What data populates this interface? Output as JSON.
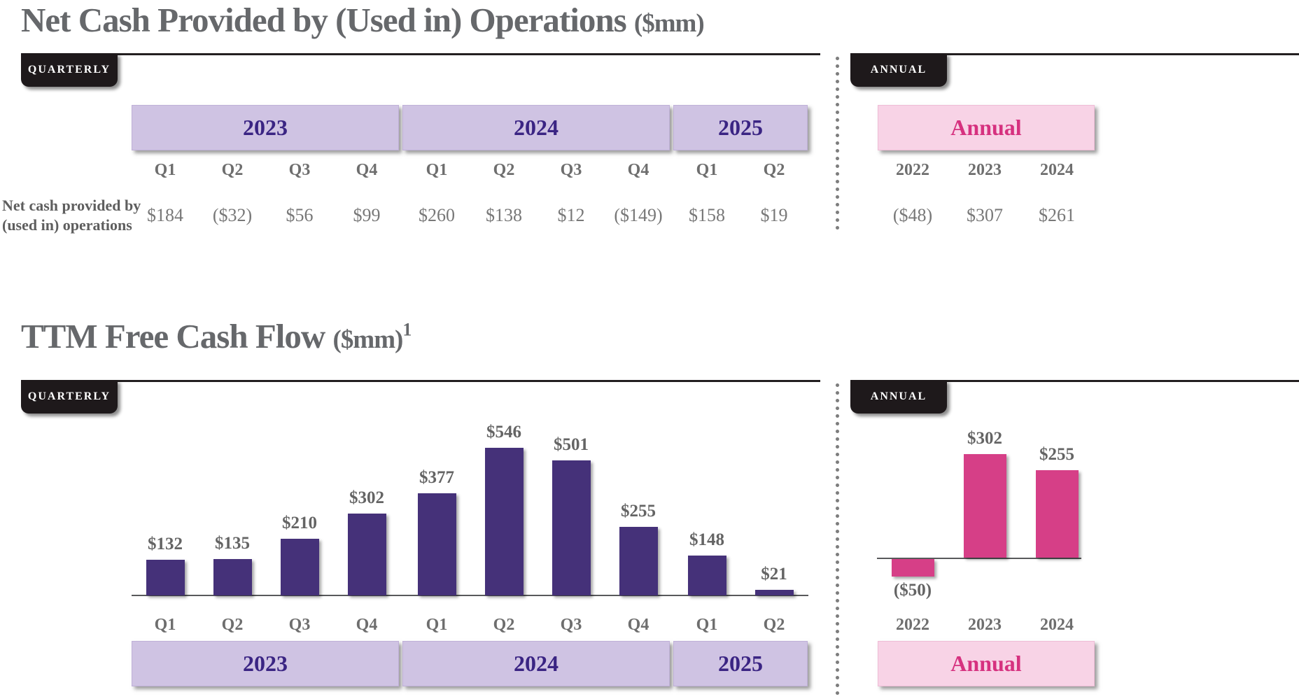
{
  "colors": {
    "purple_bar": "#453179",
    "pink_bar": "#d63f87",
    "lavender_band": "#cfc3e3",
    "pink_band": "#f8d3e6",
    "year_text": "#3a2483",
    "annual_text": "#d6317f",
    "badge_bg": "#1e191b",
    "text_gray": "#6e6e6e"
  },
  "section1": {
    "title": "Net Cash Provided by (Used in) Operations",
    "title_suffix": "($mm)",
    "quarterly_badge": "QUARTERLY",
    "annual_badge": "ANNUAL",
    "row_label_line1": "Net cash provided by",
    "row_label_line2": "(used in) operations",
    "year_bands": [
      "2023",
      "2024",
      "2025"
    ],
    "quarter_labels": [
      "Q1",
      "Q2",
      "Q3",
      "Q4",
      "Q1",
      "Q2",
      "Q3",
      "Q4",
      "Q1",
      "Q2"
    ],
    "quarter_values": [
      "$184",
      "($32)",
      "$56",
      "$99",
      "$260",
      "$138",
      "$12",
      "($149)",
      "$158",
      "$19"
    ],
    "annual": {
      "band_label": "Annual",
      "year_labels": [
        "2022",
        "2023",
        "2024"
      ],
      "values": [
        "($48)",
        "$307",
        "$261"
      ]
    }
  },
  "section2": {
    "title": "TTM Free Cash Flow",
    "title_suffix": "($mm)",
    "footnote_marker": "1",
    "quarterly_badge": "QUARTERLY",
    "annual_badge": "ANNUAL",
    "year_bands": [
      "2023",
      "2024",
      "2025"
    ],
    "annual_band_label": "Annual"
  },
  "chart_data": [
    {
      "type": "table",
      "title": "Net Cash Provided by (Used in) Operations ($mm)",
      "row_label": "Net cash provided by (used in) operations",
      "quarterly_columns": [
        "Q1 2023",
        "Q2 2023",
        "Q3 2023",
        "Q4 2023",
        "Q1 2024",
        "Q2 2024",
        "Q3 2024",
        "Q4 2024",
        "Q1 2025",
        "Q2 2025"
      ],
      "quarterly_values": [
        184,
        -32,
        56,
        99,
        260,
        138,
        12,
        -149,
        158,
        19
      ],
      "annual_columns": [
        "2022",
        "2023",
        "2024"
      ],
      "annual_values": [
        -48,
        307,
        261
      ]
    },
    {
      "type": "bar",
      "title": "TTM Free Cash Flow ($mm) - Quarterly",
      "categories": [
        "Q1",
        "Q2",
        "Q3",
        "Q4",
        "Q1",
        "Q2",
        "Q3",
        "Q4",
        "Q1",
        "Q2"
      ],
      "category_years": [
        "2023",
        "2023",
        "2023",
        "2023",
        "2024",
        "2024",
        "2024",
        "2024",
        "2025",
        "2025"
      ],
      "values": [
        132,
        135,
        210,
        302,
        377,
        546,
        501,
        255,
        148,
        21
      ],
      "data_labels": [
        "$132",
        "$135",
        "$210",
        "$302",
        "$377",
        "$546",
        "$501",
        "$255",
        "$148",
        "$21"
      ],
      "bar_color": "#453179",
      "ylim": [
        0,
        600
      ],
      "grid": false,
      "legend": "none"
    },
    {
      "type": "bar",
      "title": "TTM Free Cash Flow ($mm) - Annual",
      "categories": [
        "2022",
        "2023",
        "2024"
      ],
      "values": [
        -50,
        302,
        255
      ],
      "data_labels": [
        "($50)",
        "$302",
        "$255"
      ],
      "bar_color": "#d63f87",
      "ylim": [
        -100,
        600
      ],
      "grid": false,
      "legend": "none"
    }
  ]
}
